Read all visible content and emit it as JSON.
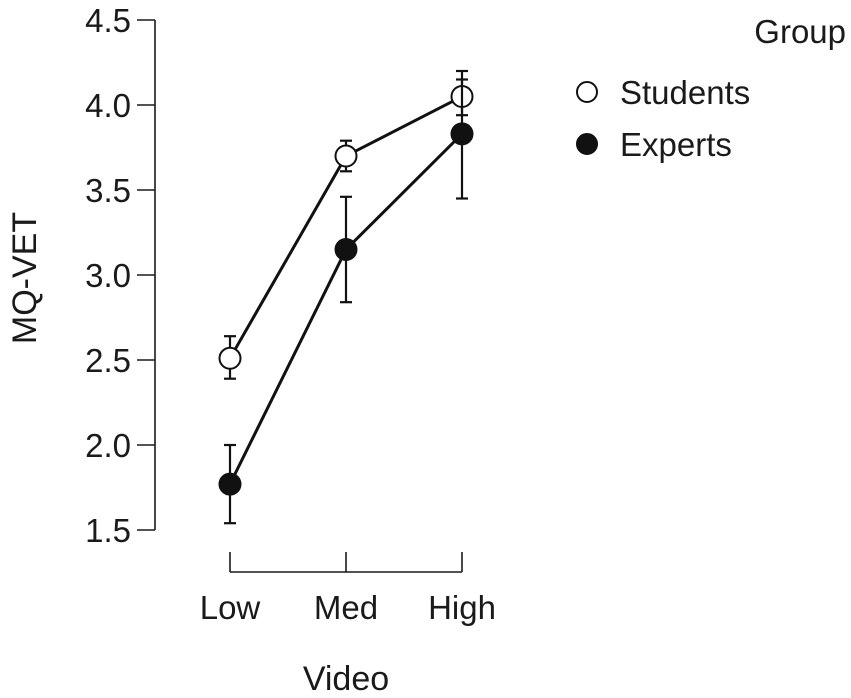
{
  "chart_data": {
    "type": "line",
    "title": "",
    "xlabel": "Video",
    "ylabel": "MQ-VET",
    "categories": [
      "Low",
      "Med",
      "High"
    ],
    "ylim": [
      1.5,
      4.5
    ],
    "yticks": [
      "1.5",
      "2.0",
      "2.5",
      "3.0",
      "3.5",
      "4.0",
      "4.5"
    ],
    "grid": false,
    "legend": {
      "title": "Group",
      "placement": "top-right"
    },
    "series": [
      {
        "name": "Students",
        "marker": "open-circle",
        "values": [
          2.51,
          3.7,
          4.05
        ],
        "err_low": [
          2.39,
          3.61,
          3.94
        ],
        "err_high": [
          2.64,
          3.79,
          4.15
        ],
        "color": "#ffffff"
      },
      {
        "name": "Experts",
        "marker": "filled-circle",
        "values": [
          1.77,
          3.15,
          3.83
        ],
        "err_low": [
          1.54,
          2.84,
          3.45
        ],
        "err_high": [
          2.0,
          3.46,
          4.2
        ],
        "color": "#111111"
      }
    ]
  }
}
